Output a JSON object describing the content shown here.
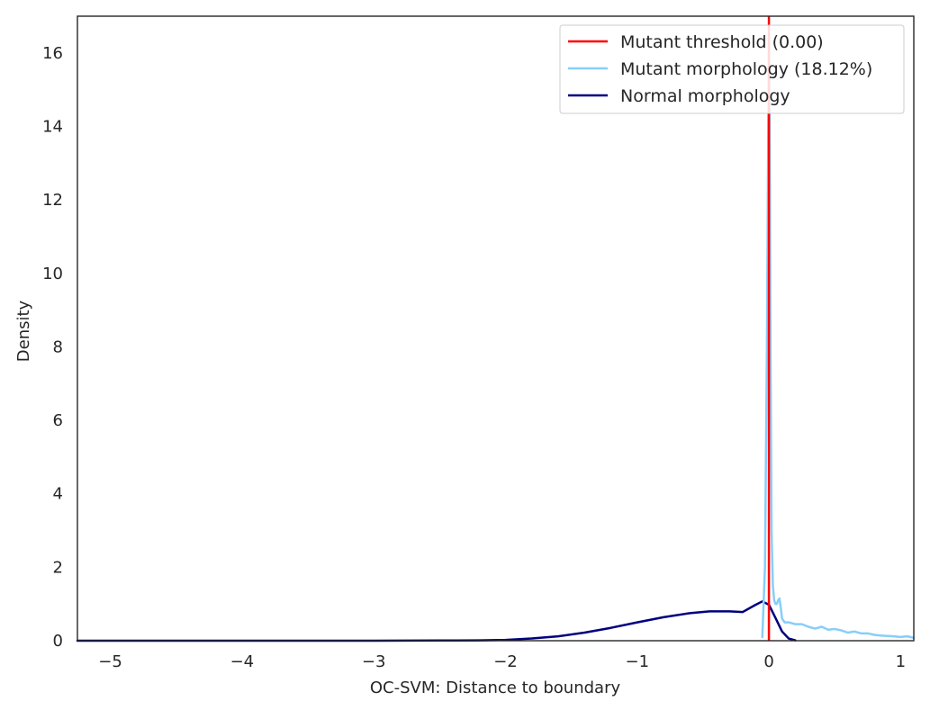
{
  "chart_data": {
    "type": "line",
    "xlabel": "OC-SVM: Distance to boundary",
    "ylabel": "Density",
    "xlim": [
      -5.25,
      1.1
    ],
    "ylim": [
      0,
      17
    ],
    "xticks": [
      -5,
      -4,
      -3,
      -2,
      -1,
      0,
      1
    ],
    "xtick_labels": [
      "−5",
      "−4",
      "−3",
      "−2",
      "−1",
      "0",
      "1"
    ],
    "yticks": [
      0,
      2,
      4,
      6,
      8,
      10,
      12,
      14,
      16
    ],
    "ytick_labels": [
      "0",
      "2",
      "4",
      "6",
      "8",
      "10",
      "12",
      "14",
      "16"
    ],
    "grid": false,
    "legend_position": "top-right",
    "threshold": {
      "name": "Mutant threshold (0.00)",
      "x": 0.0,
      "color": "#ff0000"
    },
    "series": [
      {
        "name": "Mutant morphology (18.12%)",
        "color": "#87cefa",
        "x": [
          -0.05,
          -0.03,
          -0.015,
          -0.005,
          0.0,
          0.005,
          0.012,
          0.02,
          0.03,
          0.04,
          0.05,
          0.06,
          0.07,
          0.08,
          0.09,
          0.1,
          0.12,
          0.15,
          0.2,
          0.25,
          0.3,
          0.35,
          0.4,
          0.45,
          0.5,
          0.55,
          0.6,
          0.65,
          0.7,
          0.75,
          0.8,
          0.85,
          0.9,
          0.95,
          1.0,
          1.05,
          1.1
        ],
        "y": [
          0.1,
          2.0,
          8.0,
          14.0,
          16.5,
          14.5,
          8.0,
          3.0,
          1.5,
          1.1,
          1.0,
          1.0,
          1.1,
          1.15,
          0.9,
          0.6,
          0.5,
          0.5,
          0.45,
          0.45,
          0.38,
          0.33,
          0.38,
          0.3,
          0.32,
          0.28,
          0.22,
          0.25,
          0.2,
          0.2,
          0.16,
          0.14,
          0.13,
          0.12,
          0.1,
          0.12,
          0.08
        ]
      },
      {
        "name": "Normal morphology",
        "color": "#00007f",
        "x": [
          -5.25,
          -3.0,
          -2.5,
          -2.2,
          -2.0,
          -1.8,
          -1.6,
          -1.4,
          -1.2,
          -1.0,
          -0.8,
          -0.6,
          -0.45,
          -0.3,
          -0.2,
          -0.1,
          -0.05,
          0.0,
          0.05,
          0.1,
          0.15,
          0.2
        ],
        "y": [
          0.0,
          0.0,
          0.005,
          0.01,
          0.02,
          0.06,
          0.12,
          0.22,
          0.35,
          0.5,
          0.64,
          0.75,
          0.8,
          0.8,
          0.78,
          0.98,
          1.07,
          0.98,
          0.62,
          0.25,
          0.06,
          0.01
        ]
      }
    ]
  }
}
